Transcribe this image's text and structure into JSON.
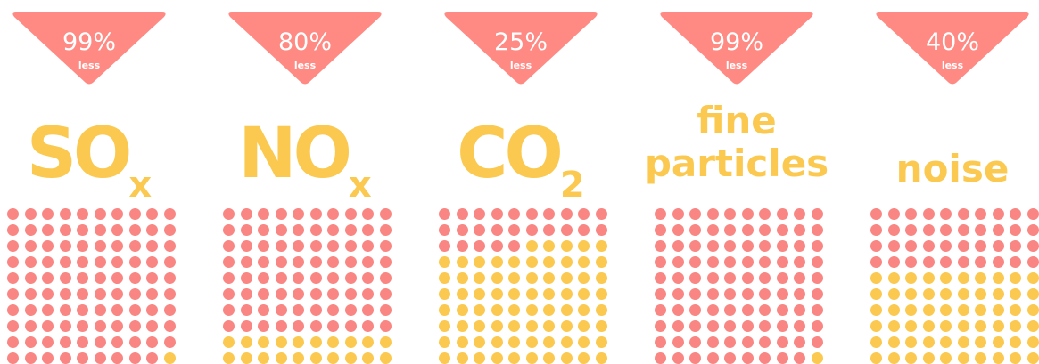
{
  "items": [
    {
      "percent": "99%",
      "less": "less",
      "chem": "SO",
      "sub": "x",
      "word": "",
      "remaining_dots": 99
    },
    {
      "percent": "80%",
      "less": "less",
      "chem": "NO",
      "sub": "x",
      "word": "",
      "remaining_dots": 80
    },
    {
      "percent": "25%",
      "less": "less",
      "chem": "CO",
      "sub": "2",
      "word": "",
      "remaining_dots": 25
    },
    {
      "percent": "99%",
      "less": "less",
      "chem": "",
      "sub": "",
      "word": "fine particles",
      "remaining_dots": 99
    },
    {
      "percent": "40%",
      "less": "less",
      "chem": "",
      "sub": "",
      "word": "noise",
      "remaining_dots": 40
    }
  ],
  "colors": {
    "badge": "#ff8a84",
    "red_dot": "#f98683",
    "yellow_dot": "#fbc94f",
    "label": "#fbc94f"
  }
}
